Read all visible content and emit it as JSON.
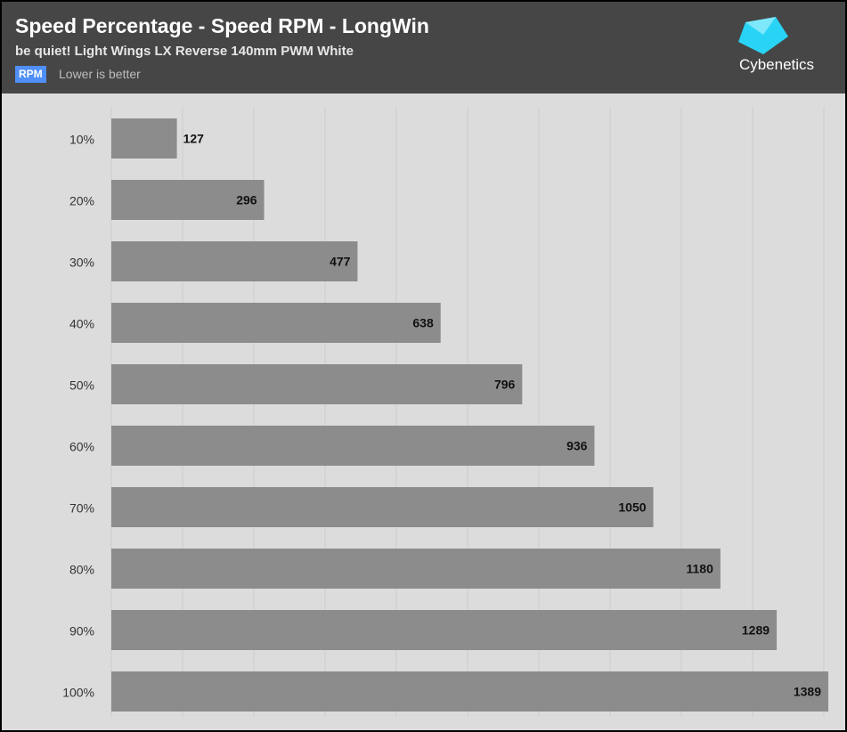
{
  "header": {
    "title": "Speed Percentage - Speed RPM - LongWin",
    "subtitle": "be quiet! Light Wings LX Reverse 140mm PWM White",
    "badge": "RPM",
    "note": "Lower is better",
    "logo_text": "Cybenetics"
  },
  "colors": {
    "header_bg": "#464646",
    "plot_bg": "#dcdcdc",
    "bar": "#8c8c8c",
    "badge": "#4f8ff7",
    "logo": "#29d3f5"
  },
  "chart_data": {
    "type": "bar",
    "orientation": "horizontal",
    "categories": [
      "10%",
      "20%",
      "30%",
      "40%",
      "50%",
      "60%",
      "70%",
      "80%",
      "90%",
      "100%"
    ],
    "values": [
      127,
      296,
      477,
      638,
      796,
      936,
      1050,
      1180,
      1289,
      1389
    ],
    "xlim": [
      0,
      1389
    ],
    "grid": true
  }
}
